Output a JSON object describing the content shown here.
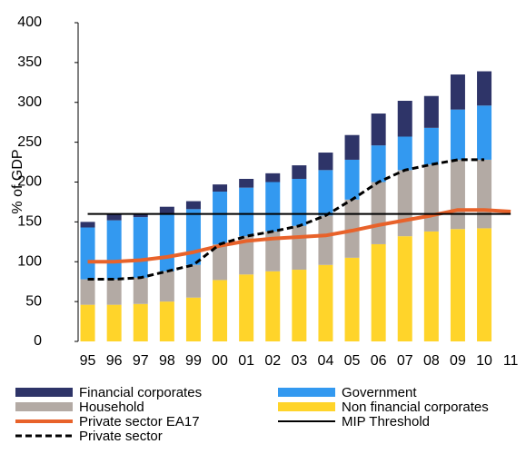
{
  "chart_data": {
    "type": "bar",
    "stacked": true,
    "y_label": "% of GDP",
    "categories": [
      "95",
      "96",
      "97",
      "98",
      "99",
      "00",
      "01",
      "02",
      "03",
      "04",
      "05",
      "06",
      "07",
      "08",
      "09",
      "10",
      "11"
    ],
    "ylim": [
      0,
      400
    ],
    "yticks": [
      0,
      50,
      100,
      150,
      200,
      250,
      300,
      350,
      400
    ],
    "grid": false,
    "series": [
      {
        "name": "Non financial corporates",
        "kind": "bar",
        "color": "#ffd42a",
        "values": [
          46,
          46,
          47,
          50,
          55,
          77,
          84,
          88,
          90,
          96,
          105,
          122,
          132,
          138,
          141,
          142,
          null
        ]
      },
      {
        "name": "Household",
        "kind": "bar",
        "color": "#b3aaa4",
        "values": [
          32,
          32,
          33,
          38,
          41,
          45,
          48,
          50,
          55,
          62,
          73,
          78,
          83,
          84,
          87,
          86,
          null
        ]
      },
      {
        "name": "Government",
        "kind": "bar",
        "color": "#3399f0",
        "values": [
          65,
          74,
          76,
          72,
          70,
          66,
          61,
          62,
          59,
          57,
          50,
          46,
          42,
          46,
          63,
          68,
          null
        ]
      },
      {
        "name": "Financial corporates",
        "kind": "bar",
        "color": "#2e3468",
        "values": [
          7,
          7,
          4,
          9,
          10,
          9,
          11,
          11,
          17,
          22,
          31,
          40,
          45,
          40,
          44,
          43,
          null
        ]
      },
      {
        "name": "Private sector EA17",
        "kind": "line",
        "color": "#e8622a",
        "values": [
          100,
          100,
          102,
          106,
          112,
          120,
          126,
          129,
          131,
          133,
          139,
          146,
          152,
          158,
          165,
          165,
          163
        ]
      },
      {
        "name": "MIP Threshold",
        "kind": "line",
        "color": "#000000",
        "values": [
          160,
          160,
          160,
          160,
          160,
          160,
          160,
          160,
          160,
          160,
          160,
          160,
          160,
          160,
          160,
          160,
          160
        ]
      },
      {
        "name": "Private sector",
        "kind": "line",
        "dashed": true,
        "color": "#000000",
        "values": [
          78,
          78,
          80,
          88,
          96,
          122,
          132,
          138,
          145,
          158,
          178,
          200,
          215,
          222,
          228,
          228,
          null
        ]
      }
    ]
  }
}
